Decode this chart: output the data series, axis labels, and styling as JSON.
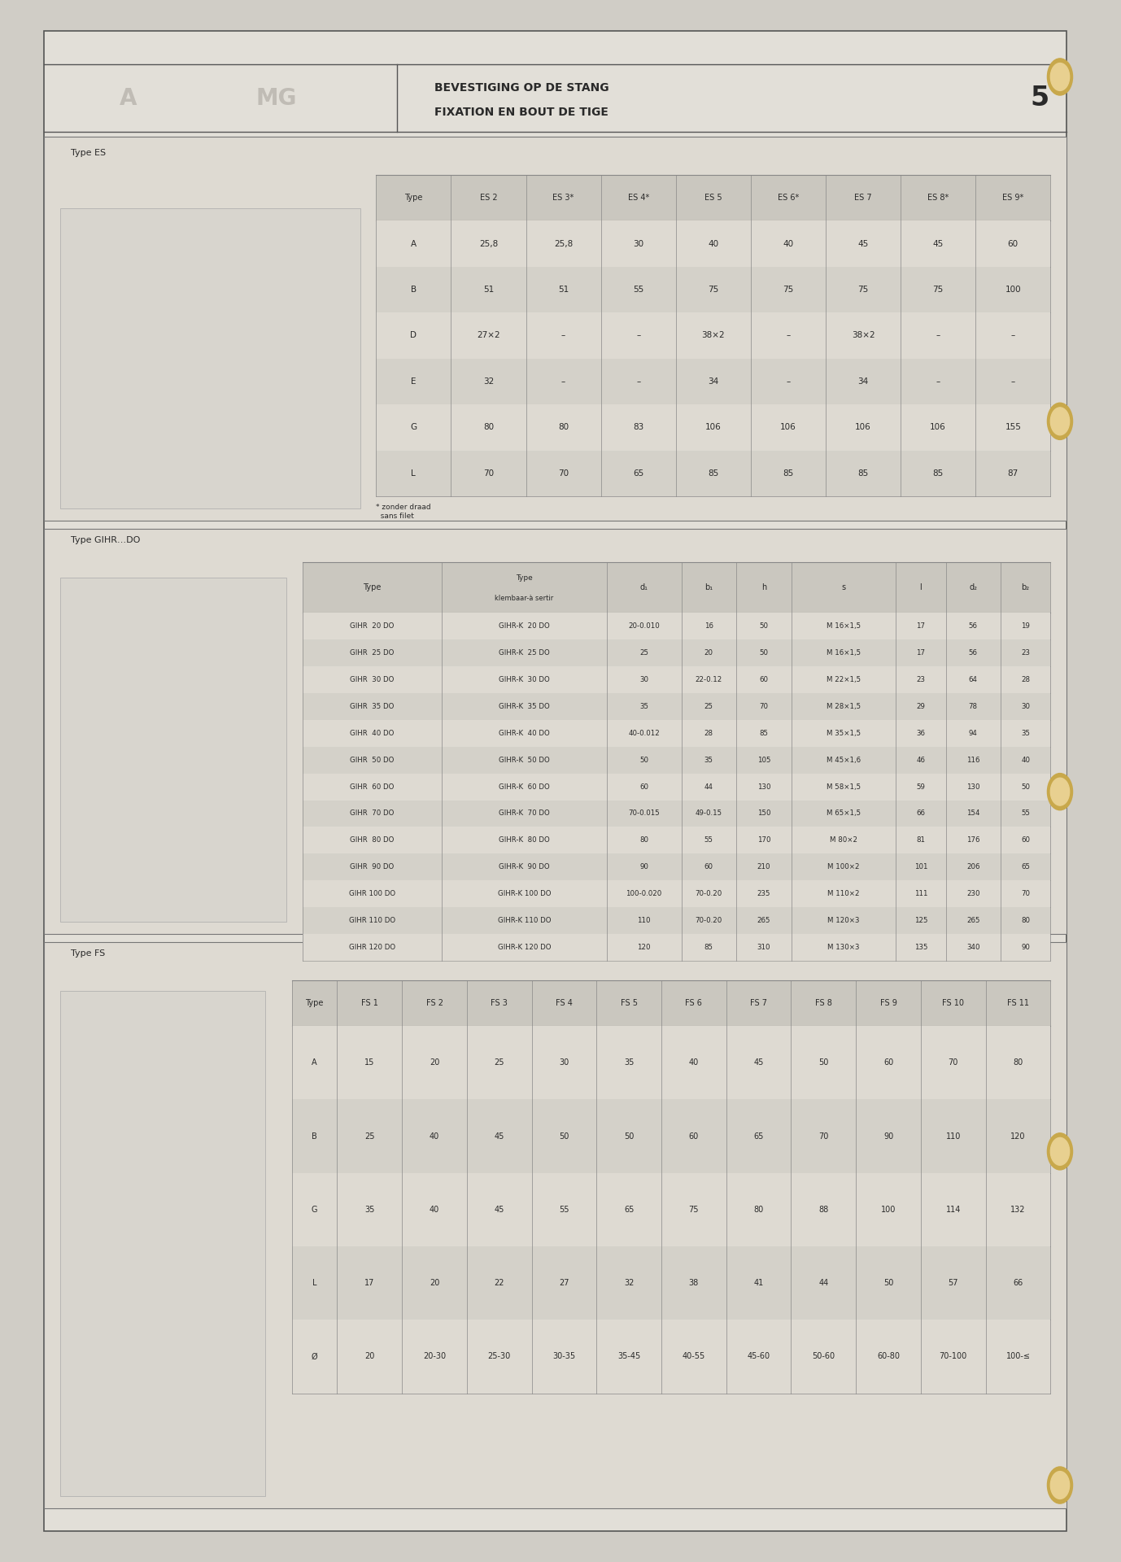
{
  "title_line1": "BEVESTIGING OP DE STANG",
  "title_line2": "FIXATION EN BOUT DE TIGE",
  "page_number": "5",
  "bg_color": "#d0cdc6",
  "paper_color": "#e2dfd8",
  "text_color": "#2a2a2a",
  "table_line_color": "#888888",
  "type_ES_label": "Type ES",
  "ES_note": "* zonder draad\n  sans filet",
  "ES_columns": [
    "Type",
    "ES 2",
    "ES 3*",
    "ES 4*",
    "ES 5",
    "ES 6*",
    "ES 7",
    "ES 8*",
    "ES 9*"
  ],
  "ES_rows": [
    [
      "A",
      "25,8",
      "25,8",
      "30",
      "40",
      "40",
      "45",
      "45",
      "60"
    ],
    [
      "B",
      "51",
      "51",
      "55",
      "75",
      "75",
      "75",
      "75",
      "100"
    ],
    [
      "D",
      "27×2",
      "–",
      "–",
      "38×2",
      "–",
      "38×2",
      "–",
      "–"
    ],
    [
      "E",
      "32",
      "–",
      "–",
      "34",
      "–",
      "34",
      "–",
      "–"
    ],
    [
      "G",
      "80",
      "80",
      "83",
      "106",
      "106",
      "106",
      "106",
      "155"
    ],
    [
      "L",
      "70",
      "70",
      "65",
      "85",
      "85",
      "85",
      "85",
      "87"
    ]
  ],
  "type_GIHR_label": "Type GIHR…DO",
  "GIHR_col_headers": [
    "Type",
    "Type\nklembaar-à sertir",
    "d₁",
    "b₁",
    "h",
    "s",
    "l",
    "d₂",
    "b₂"
  ],
  "GIHR_rows": [
    [
      "GIHR  20 DO",
      "GIHR-K  20 DO",
      "20-0.010",
      "16",
      "50",
      "M 16×1,5",
      "17",
      "56",
      "19"
    ],
    [
      "GIHR  25 DO",
      "GIHR-K  25 DO",
      "25",
      "20",
      "50",
      "M 16×1,5",
      "17",
      "56",
      "23"
    ],
    [
      "GIHR  30 DO",
      "GIHR-K  30 DO",
      "30",
      "22-0.12",
      "60",
      "M 22×1,5",
      "23",
      "64",
      "28"
    ],
    [
      "GIHR  35 DO",
      "GIHR-K  35 DO",
      "35",
      "25",
      "70",
      "M 28×1,5",
      "29",
      "78",
      "30"
    ],
    [
      "GIHR  40 DO",
      "GIHR-K  40 DO",
      "40-0.012",
      "28",
      "85",
      "M 35×1,5",
      "36",
      "94",
      "35"
    ],
    [
      "GIHR  50 DO",
      "GIHR-K  50 DO",
      "50",
      "35",
      "105",
      "M 45×1,6",
      "46",
      "116",
      "40"
    ],
    [
      "GIHR  60 DO",
      "GIHR-K  60 DO",
      "60",
      "44",
      "130",
      "M 58×1,5",
      "59",
      "130",
      "50"
    ],
    [
      "GIHR  70 DO",
      "GIHR-K  70 DO",
      "70-0.015",
      "49-0.15",
      "150",
      "M 65×1,5",
      "66",
      "154",
      "55"
    ],
    [
      "GIHR  80 DO",
      "GIHR-K  80 DO",
      "80",
      "55",
      "170",
      "M 80×2",
      "81",
      "176",
      "60"
    ],
    [
      "GIHR  90 DO",
      "GIHR-K  90 DO",
      "90",
      "60",
      "210",
      "M 100×2",
      "101",
      "206",
      "65"
    ],
    [
      "GIHR 100 DO",
      "GIHR-K 100 DO",
      "100-0.020",
      "70-0.20",
      "235",
      "M 110×2",
      "111",
      "230",
      "70"
    ],
    [
      "GIHR 110 DO",
      "GIHR-K 110 DO",
      "110",
      "70-0.20",
      "265",
      "M 120×3",
      "125",
      "265",
      "80"
    ],
    [
      "GIHR 120 DO",
      "GIHR-K 120 DO",
      "120",
      "85",
      "310",
      "M 130×3",
      "135",
      "340",
      "90"
    ]
  ],
  "type_FS_label": "Type FS",
  "FS_columns": [
    "Type",
    "FS 1",
    "FS 2",
    "FS 3",
    "FS 4",
    "FS 5",
    "FS 6",
    "FS 7",
    "FS 8",
    "FS 9",
    "FS 10",
    "FS 11"
  ],
  "FS_rows": [
    [
      "A",
      "15",
      "20",
      "25",
      "30",
      "35",
      "40",
      "45",
      "50",
      "60",
      "70",
      "80"
    ],
    [
      "B",
      "25",
      "40",
      "45",
      "50",
      "50",
      "60",
      "65",
      "70",
      "90",
      "110",
      "120"
    ],
    [
      "G",
      "35",
      "40",
      "45",
      "55",
      "65",
      "75",
      "80",
      "88",
      "100",
      "114",
      "132"
    ],
    [
      "L",
      "17",
      "20",
      "22",
      "27",
      "32",
      "38",
      "41",
      "44",
      "50",
      "57",
      "66"
    ],
    [
      "Ø",
      "20",
      "20-30",
      "25-30",
      "30-35",
      "35-45",
      "40-55",
      "45-60",
      "50-60",
      "60-80",
      "70-100",
      "100-≤"
    ]
  ]
}
